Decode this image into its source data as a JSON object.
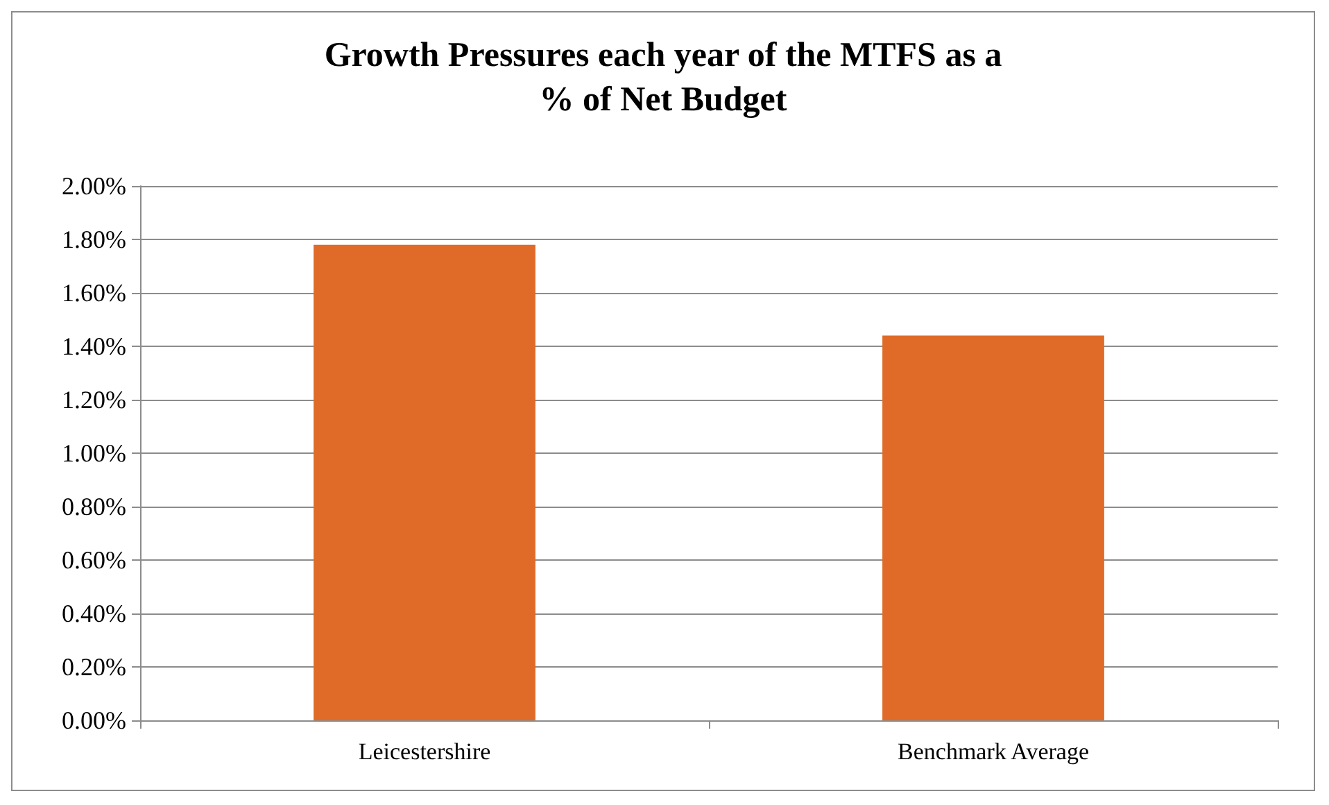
{
  "chart_data": {
    "type": "bar",
    "title": "Growth Pressures each year of the MTFS as a\n% of Net Budget",
    "categories": [
      "Leicestershire",
      "Benchmark Average"
    ],
    "values": [
      1.78,
      1.44
    ],
    "color": "#e06b28",
    "ylim": [
      0,
      2
    ],
    "yticks": [
      {
        "value": 0,
        "label": "0.00%"
      },
      {
        "value": 0.2,
        "label": "0.20%"
      },
      {
        "value": 0.4,
        "label": "0.40%"
      },
      {
        "value": 0.6,
        "label": "0.60%"
      },
      {
        "value": 0.8,
        "label": "0.80%"
      },
      {
        "value": 1,
        "label": "1.00%"
      },
      {
        "value": 1.2,
        "label": "1.20%"
      },
      {
        "value": 1.4,
        "label": "1.40%"
      },
      {
        "value": 1.6,
        "label": "1.60%"
      },
      {
        "value": 1.8,
        "label": "1.80%"
      },
      {
        "value": 2,
        "label": "2.00%"
      }
    ],
    "grid": true
  }
}
